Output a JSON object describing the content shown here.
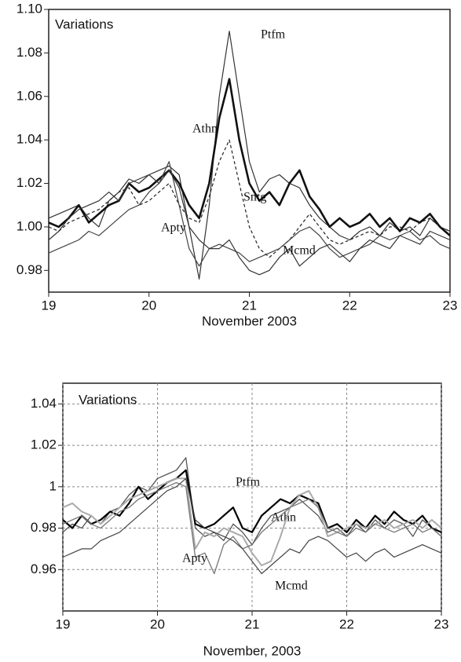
{
  "chart_data": [
    {
      "type": "line",
      "title": "Variations",
      "xlabel": "November 2003",
      "x": [
        19,
        19.1,
        19.2,
        19.3,
        19.4,
        19.5,
        19.6,
        19.7,
        19.8,
        19.9,
        20,
        20.1,
        20.2,
        20.3,
        20.4,
        20.5,
        20.6,
        20.7,
        20.8,
        20.9,
        21,
        21.1,
        21.2,
        21.3,
        21.4,
        21.5,
        21.6,
        21.7,
        21.8,
        21.9,
        22,
        22.1,
        22.2,
        22.3,
        22.4,
        22.5,
        22.6,
        22.7,
        22.8,
        22.9,
        23
      ],
      "xlim": [
        19,
        23
      ],
      "xticks": [
        19,
        20,
        21,
        22,
        23
      ],
      "ylim": [
        0.97,
        1.1
      ],
      "yticks": [
        0.98,
        {
          "value": 1,
          "label": "1.00"
        },
        1.02,
        1.04,
        1.06,
        1.08,
        {
          "value": 1.1,
          "label": "1.10"
        }
      ],
      "grid": false,
      "series": [
        {
          "name": "Ptfm",
          "color": "#333333",
          "values": [
            1.004,
            1.006,
            1.008,
            1.01,
            1.004,
            1.0,
            1.012,
            1.016,
            1.022,
            1.02,
            1.024,
            1.026,
            1.028,
            1.024,
            1.0,
            0.976,
            1.01,
            1.06,
            1.09,
            1.06,
            1.03,
            1.016,
            1.022,
            1.024,
            1.02,
            1.018,
            1.01,
            1.004,
            1.0,
            0.996,
            0.994,
            0.998,
            1.0,
            0.996,
            1.002,
            0.998,
            1.0,
            0.996,
            1.004,
            1.0,
            0.998
          ]
        },
        {
          "name": "Athn",
          "color": "#111111",
          "values": [
            1.002,
            1.0,
            1.004,
            1.01,
            1.002,
            1.006,
            1.01,
            1.012,
            1.02,
            1.016,
            1.018,
            1.022,
            1.026,
            1.02,
            1.01,
            1.004,
            1.02,
            1.05,
            1.068,
            1.04,
            1.02,
            1.012,
            1.016,
            1.01,
            1.02,
            1.026,
            1.014,
            1.008,
            1.0,
            1.004,
            1.0,
            1.002,
            1.006,
            1.0,
            1.004,
            0.998,
            1.004,
            1.002,
            1.006,
            1.0,
            0.996
          ]
        },
        {
          "name": "Sntg",
          "color": "#222222",
          "linestyle": "dashed",
          "values": [
            1.0,
            0.998,
            1.002,
            1.004,
            1.006,
            1.008,
            1.012,
            1.016,
            1.018,
            1.01,
            1.012,
            1.016,
            1.02,
            1.01,
            1.004,
            1.002,
            1.014,
            1.03,
            1.04,
            1.02,
            1.0,
            0.99,
            0.986,
            0.99,
            0.994,
            1.0,
            1.006,
            1.0,
            0.994,
            0.992,
            0.994,
            0.996,
            0.998,
            0.996,
            1.0,
            1.0,
            0.998,
            1.002,
            1.004,
            1.0,
            0.998
          ]
        },
        {
          "name": "Apty",
          "color": "#444444",
          "values": [
            0.988,
            0.99,
            0.992,
            0.994,
            0.998,
            0.996,
            1.0,
            1.004,
            1.008,
            1.01,
            1.016,
            1.02,
            1.03,
            1.01,
            0.99,
            0.982,
            0.99,
            0.992,
            0.99,
            0.988,
            0.984,
            0.986,
            0.988,
            0.99,
            0.994,
            0.998,
            1.0,
            0.996,
            0.99,
            0.986,
            0.988,
            0.99,
            0.992,
            0.996,
            0.994,
            0.996,
            0.998,
            0.994,
            0.996,
            0.992,
            0.99
          ]
        },
        {
          "name": "Mcmd",
          "color": "#333333",
          "values": [
            0.994,
            0.998,
            1.004,
            1.008,
            1.01,
            1.012,
            1.016,
            1.012,
            1.02,
            1.022,
            1.024,
            1.02,
            1.026,
            1.018,
            1.0,
            0.994,
            0.99,
            0.99,
            0.994,
            0.986,
            0.98,
            0.978,
            0.98,
            0.986,
            0.99,
            0.982,
            0.986,
            0.99,
            0.992,
            0.988,
            0.984,
            0.99,
            0.994,
            0.992,
            0.99,
            0.996,
            0.994,
            0.992,
            0.998,
            0.996,
            0.994
          ]
        }
      ]
    },
    {
      "type": "line",
      "title": "Variations",
      "xlabel": "November, 2003",
      "x": [
        19,
        19.1,
        19.2,
        19.3,
        19.4,
        19.5,
        19.6,
        19.7,
        19.8,
        19.9,
        20,
        20.1,
        20.2,
        20.3,
        20.4,
        20.5,
        20.6,
        20.7,
        20.8,
        20.9,
        21,
        21.1,
        21.2,
        21.3,
        21.4,
        21.5,
        21.6,
        21.7,
        21.8,
        21.9,
        22,
        22.1,
        22.2,
        22.3,
        22.4,
        22.5,
        22.6,
        22.7,
        22.8,
        22.9,
        23
      ],
      "xlim": [
        19,
        23
      ],
      "xticks": [
        19,
        20,
        21,
        22,
        23
      ],
      "ylim": [
        0.94,
        1.05
      ],
      "yticks": [
        0.96,
        0.98,
        1,
        1.02,
        1.04
      ],
      "grid": true,
      "series": [
        {
          "name": "Ptfm",
          "color": "#555555",
          "values": [
            0.978,
            0.982,
            0.98,
            0.986,
            0.982,
            0.988,
            0.99,
            0.996,
            1.0,
            0.998,
            1.004,
            1.006,
            1.008,
            1.014,
            0.98,
            0.976,
            0.978,
            0.974,
            0.982,
            0.978,
            0.972,
            0.98,
            0.986,
            0.988,
            0.99,
            0.994,
            0.99,
            0.986,
            0.978,
            0.98,
            0.976,
            0.982,
            0.978,
            0.984,
            0.98,
            0.984,
            0.982,
            0.976,
            0.984,
            0.98,
            0.976
          ]
        },
        {
          "name": "Athn",
          "color": "#000000",
          "values": [
            0.984,
            0.98,
            0.986,
            0.982,
            0.984,
            0.988,
            0.986,
            0.992,
            1.0,
            0.994,
            0.998,
            1.002,
            1.004,
            1.008,
            0.982,
            0.98,
            0.982,
            0.986,
            0.99,
            0.98,
            0.978,
            0.986,
            0.99,
            0.994,
            0.992,
            0.996,
            0.994,
            0.992,
            0.98,
            0.982,
            0.978,
            0.984,
            0.98,
            0.986,
            0.982,
            0.988,
            0.984,
            0.982,
            0.986,
            0.98,
            0.978
          ]
        },
        {
          "color": "#aaaaaa",
          "values": [
            0.99,
            0.992,
            0.988,
            0.986,
            0.982,
            0.986,
            0.99,
            0.994,
            0.996,
            0.998,
            1.0,
            1.002,
            1.004,
            1.004,
            0.97,
            0.978,
            0.976,
            0.98,
            0.978,
            0.976,
            0.968,
            0.962,
            0.964,
            0.976,
            0.99,
            0.996,
            0.998,
            0.99,
            0.976,
            0.978,
            0.98,
            0.982,
            0.98,
            0.982,
            0.984,
            0.98,
            0.982,
            0.984,
            0.98,
            0.984,
            0.98
          ]
        },
        {
          "name": "Apty",
          "color": "#777777",
          "values": [
            0.982,
            0.984,
            0.986,
            0.982,
            0.98,
            0.984,
            0.988,
            0.99,
            0.994,
            0.996,
            0.998,
            1.0,
            1.002,
            1.0,
            0.966,
            0.968,
            0.958,
            0.972,
            0.976,
            0.97,
            0.972,
            0.978,
            0.982,
            0.986,
            0.99,
            0.992,
            0.994,
            0.99,
            0.98,
            0.978,
            0.976,
            0.98,
            0.978,
            0.982,
            0.98,
            0.978,
            0.98,
            0.982,
            0.978,
            0.98,
            0.976
          ]
        },
        {
          "name": "Mcmd",
          "color": "#444444",
          "values": [
            0.966,
            0.968,
            0.97,
            0.97,
            0.974,
            0.976,
            0.978,
            0.982,
            0.986,
            0.99,
            0.994,
            0.998,
            1.0,
            1.004,
            0.984,
            0.98,
            0.978,
            0.976,
            0.974,
            0.97,
            0.964,
            0.958,
            0.962,
            0.966,
            0.97,
            0.968,
            0.974,
            0.976,
            0.974,
            0.97,
            0.966,
            0.968,
            0.964,
            0.968,
            0.97,
            0.966,
            0.968,
            0.97,
            0.972,
            0.97,
            0.968
          ]
        }
      ]
    }
  ]
}
